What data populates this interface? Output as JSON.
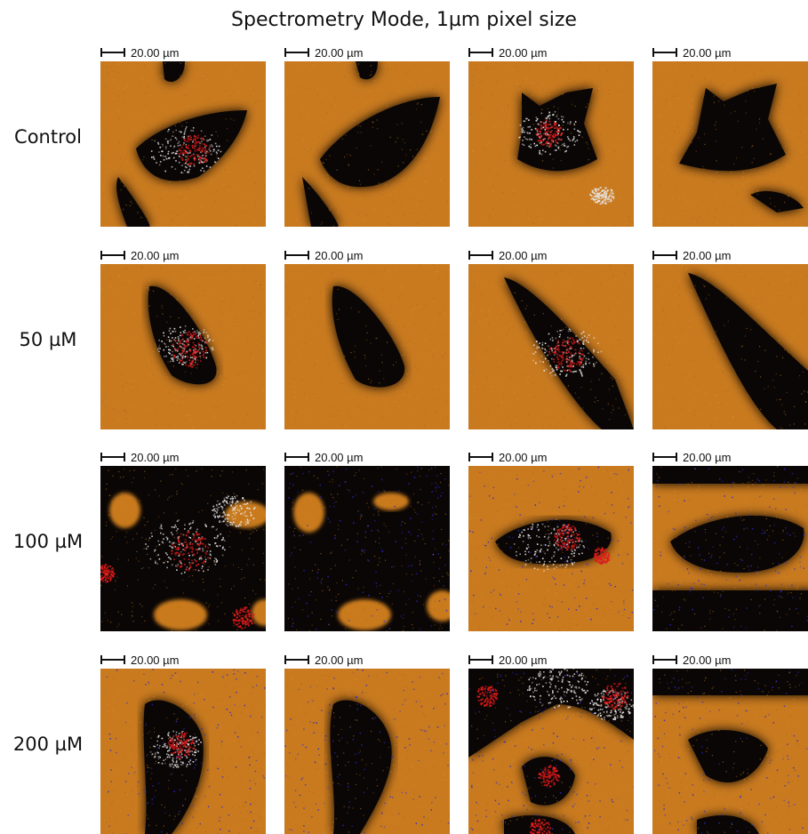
{
  "title": "Spectrometry Mode, 1µm pixel size",
  "scale_label": "20.00 µm",
  "rows": [
    {
      "label": "Control"
    },
    {
      "label": "50 µM"
    },
    {
      "label": "100 µM"
    },
    {
      "label": "200 µM"
    }
  ],
  "colors": {
    "background": "#c97a1f",
    "cell": "#0a0605",
    "signal_red": "#e01a1a",
    "signal_white": "#e8e8e8",
    "signal_blue": "#2a2ad0"
  }
}
